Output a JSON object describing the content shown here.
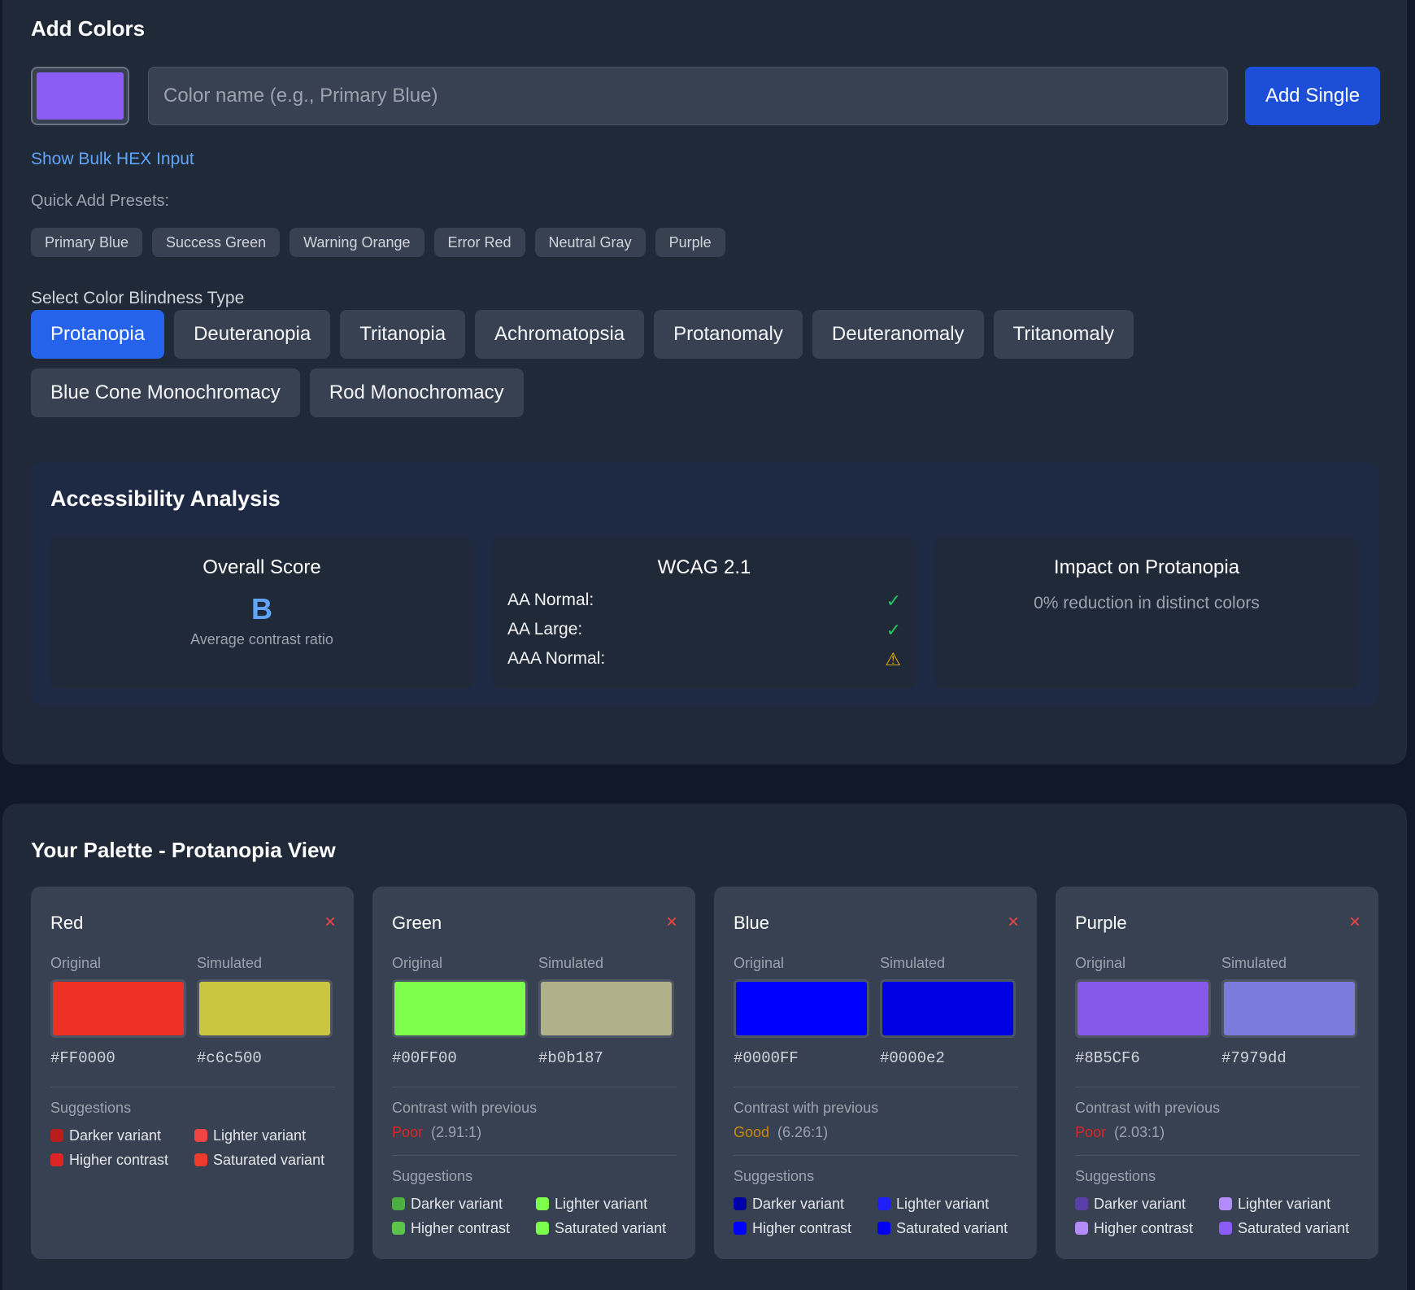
{
  "add_colors": {
    "title": "Add Colors",
    "picker_color": "#8B5CF6",
    "name_placeholder": "Color name (e.g., Primary Blue)",
    "add_single_label": "Add Single",
    "bulk_link": "Show Bulk HEX Input",
    "presets_label": "Quick Add Presets:",
    "presets": [
      "Primary Blue",
      "Success Green",
      "Warning Orange",
      "Error Red",
      "Neutral Gray",
      "Purple"
    ]
  },
  "blindness": {
    "label": "Select Color Blindness Type",
    "types": [
      "Protanopia",
      "Deuteranopia",
      "Tritanopia",
      "Achromatopsia",
      "Protanomaly",
      "Deuteranomaly",
      "Tritanomaly",
      "Blue Cone Monochromacy",
      "Rod Monochromacy"
    ],
    "selected": "Protanopia"
  },
  "analysis": {
    "title": "Accessibility Analysis",
    "score_title": "Overall Score",
    "score_grade": "B",
    "score_sub": "Average contrast ratio",
    "wcag_title": "WCAG 2.1",
    "wcag_rows": [
      {
        "label": "AA Normal:",
        "mark": "✓",
        "status": "pass"
      },
      {
        "label": "AA Large:",
        "mark": "✓",
        "status": "pass"
      },
      {
        "label": "AAA Normal:",
        "mark": "⚠",
        "status": "warning"
      }
    ],
    "impact_title": "Impact on Protanopia",
    "impact_text": "0% reduction in distinct colors"
  },
  "palette": {
    "title": "Your Palette - Protanopia View",
    "original_label": "Original",
    "simulated_label": "Simulated",
    "contrast_label": "Contrast with previous",
    "suggestions_label": "Suggestions",
    "suggestion_labels": [
      "Darker variant",
      "Lighter variant",
      "Higher contrast",
      "Saturated variant"
    ],
    "remove_icon": "×",
    "cards": [
      {
        "name": "Red",
        "original_hex": "#FF0000",
        "simulated_hex": "#c6c500",
        "original_swatch": "#ee3124",
        "simulated_swatch": "#cbc640",
        "contrast": null,
        "dots": [
          "#b91c1c",
          "#ef4444",
          "#dc2626",
          "#ef3b2c"
        ]
      },
      {
        "name": "Green",
        "original_hex": "#00FF00",
        "simulated_hex": "#b0b187",
        "original_swatch": "#7cff4a",
        "simulated_swatch": "#b0b18a",
        "contrast": {
          "rating": "Poor",
          "ratio": "(2.91:1)",
          "level": "poor"
        },
        "dots": [
          "#4caf3f",
          "#7cff4a",
          "#5bc44a",
          "#7cff4a"
        ]
      },
      {
        "name": "Blue",
        "original_hex": "#0000FF",
        "simulated_hex": "#0000e2",
        "original_swatch": "#0000ff",
        "simulated_swatch": "#0000e2",
        "contrast": {
          "rating": "Good",
          "ratio": "(6.26:1)",
          "level": "good"
        },
        "dots": [
          "#0000a8",
          "#1e1eff",
          "#0000ff",
          "#0000ee"
        ]
      },
      {
        "name": "Purple",
        "original_hex": "#8B5CF6",
        "simulated_hex": "#7979dd",
        "original_swatch": "#8659ea",
        "simulated_swatch": "#7b7bdb",
        "contrast": {
          "rating": "Poor",
          "ratio": "(2.03:1)",
          "level": "poor"
        },
        "dots": [
          "#5b3fa8",
          "#b38cf9",
          "#b38cf9",
          "#8b5cf6"
        ]
      }
    ]
  }
}
